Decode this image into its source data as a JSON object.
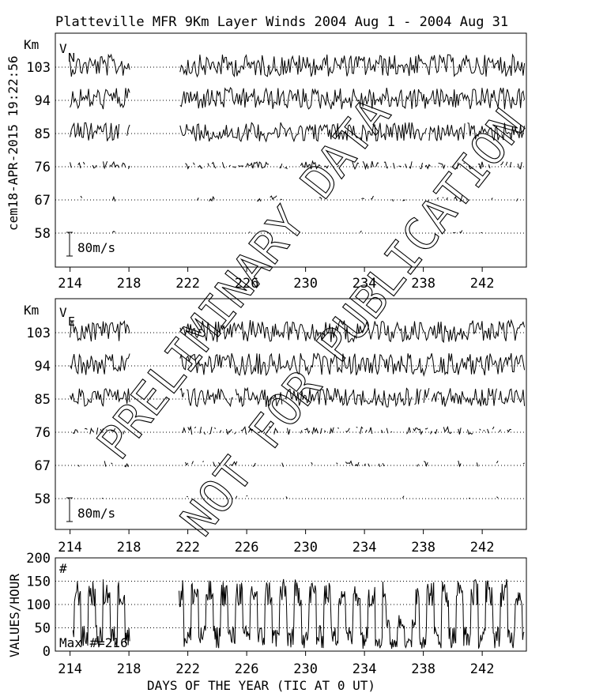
{
  "title": "Platteville MFR 9Km Layer Winds 2004 Aug  1 - 2004 Aug 31",
  "side_label": "cem18-APR-2015 19:22:56",
  "watermark": {
    "line1": "PRELIMINARY DATA",
    "line2": "NOT FOR PUBLICATION"
  },
  "chart_data": [
    {
      "type": "line",
      "panel": "northward wind",
      "component_label": "V",
      "component_sub": "N",
      "ylabel": "Km",
      "yticks": [
        "103",
        "94",
        "85",
        "76",
        "67",
        "58"
      ],
      "scale_bar": "80m/s",
      "x_ticks": [
        "214",
        "218",
        "222",
        "226",
        "230",
        "234",
        "238",
        "242"
      ],
      "xlim": [
        213,
        245
      ],
      "heights_km": [
        103,
        94,
        85,
        76,
        67,
        58
      ],
      "grid": true
    },
    {
      "type": "line",
      "panel": "eastward wind",
      "component_label": "V",
      "component_sub": "E",
      "ylabel": "Km",
      "yticks": [
        "103",
        "94",
        "85",
        "76",
        "67",
        "58"
      ],
      "scale_bar": "80m/s",
      "x_ticks": [
        "214",
        "218",
        "222",
        "226",
        "230",
        "234",
        "238",
        "242"
      ],
      "xlim": [
        213,
        245
      ],
      "heights_km": [
        103,
        94,
        85,
        76,
        67,
        58
      ],
      "grid": true
    },
    {
      "type": "line",
      "panel": "data count",
      "ylabel": "VALUES/HOUR",
      "series_label": "#",
      "annotation": "Max #=216",
      "yticks": [
        "200",
        "150",
        "100",
        "50",
        "0"
      ],
      "ylim": [
        0,
        200
      ],
      "x_ticks": [
        "214",
        "218",
        "222",
        "226",
        "230",
        "234",
        "238",
        "242"
      ],
      "xlabel": "DAYS OF THE YEAR (TIC AT 0 UT)",
      "xlim": [
        213,
        245
      ],
      "grid": true
    }
  ]
}
